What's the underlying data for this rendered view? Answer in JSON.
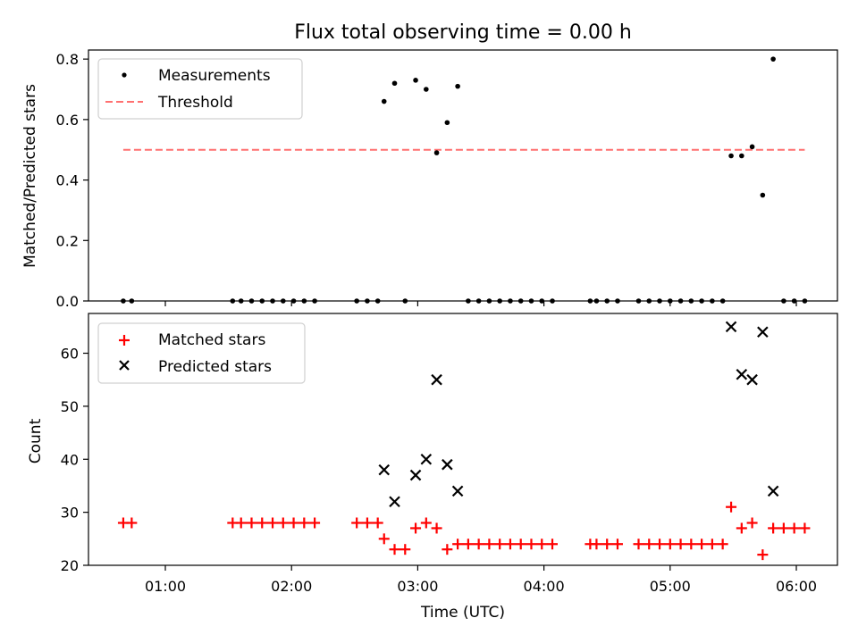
{
  "chart_data": [
    {
      "type": "scatter",
      "title": "Flux total observing time = 0.00 h",
      "xlabel": "",
      "ylabel": "Matched/Predicted stars",
      "ylim": [
        0,
        0.83
      ],
      "yticks": [
        "0.0",
        "0.2",
        "0.4",
        "0.6",
        "0.8"
      ],
      "ytick_values": [
        0,
        0.2,
        0.4,
        0.6,
        0.8
      ],
      "legend_position": "upper-left",
      "series": [
        {
          "name": "Measurements",
          "marker": "dot",
          "color": "#000000",
          "points": [
            [
              "00:40",
              0
            ],
            [
              "00:44",
              0
            ],
            [
              "01:32",
              0
            ],
            [
              "01:36",
              0
            ],
            [
              "01:41",
              0
            ],
            [
              "01:46",
              0
            ],
            [
              "01:51",
              0
            ],
            [
              "01:56",
              0
            ],
            [
              "02:01",
              0
            ],
            [
              "02:06",
              0
            ],
            [
              "02:11",
              0
            ],
            [
              "02:31",
              0
            ],
            [
              "02:36",
              0
            ],
            [
              "02:41",
              0
            ],
            [
              "02:44",
              0.66
            ],
            [
              "02:49",
              0.72
            ],
            [
              "02:54",
              0
            ],
            [
              "02:59",
              0.73
            ],
            [
              "03:04",
              0.7
            ],
            [
              "03:09",
              0.49
            ],
            [
              "03:14",
              0.59
            ],
            [
              "03:19",
              0.71
            ],
            [
              "03:24",
              0
            ],
            [
              "03:29",
              0
            ],
            [
              "03:34",
              0
            ],
            [
              "03:39",
              0
            ],
            [
              "03:44",
              0
            ],
            [
              "03:49",
              0
            ],
            [
              "03:54",
              0
            ],
            [
              "03:59",
              0
            ],
            [
              "04:04",
              0
            ],
            [
              "04:22",
              0
            ],
            [
              "04:25",
              0
            ],
            [
              "04:30",
              0
            ],
            [
              "04:35",
              0
            ],
            [
              "04:45",
              0
            ],
            [
              "04:50",
              0
            ],
            [
              "04:55",
              0
            ],
            [
              "05:00",
              0
            ],
            [
              "05:05",
              0
            ],
            [
              "05:10",
              0
            ],
            [
              "05:15",
              0
            ],
            [
              "05:20",
              0
            ],
            [
              "05:25",
              0
            ],
            [
              "05:29",
              0.48
            ],
            [
              "05:34",
              0.48
            ],
            [
              "05:39",
              0.51
            ],
            [
              "05:44",
              0.35
            ],
            [
              "05:49",
              0.8
            ],
            [
              "05:54",
              0
            ],
            [
              "05:59",
              0
            ],
            [
              "06:04",
              0
            ]
          ]
        },
        {
          "name": "Threshold",
          "marker": "dashed-line",
          "color": "#ff7070",
          "x": [
            "00:40",
            "06:04"
          ],
          "y": [
            0.5,
            0.5
          ]
        }
      ]
    },
    {
      "type": "scatter",
      "title": "",
      "xlabel": "Time (UTC)",
      "ylabel": "Count",
      "ylim": [
        20,
        67.5
      ],
      "yticks": [
        "20",
        "30",
        "40",
        "50",
        "60"
      ],
      "ytick_values": [
        20,
        30,
        40,
        50,
        60
      ],
      "xticks": [
        "01:00",
        "02:00",
        "03:00",
        "04:00",
        "05:00",
        "06:00"
      ],
      "legend_position": "upper-left",
      "series": [
        {
          "name": "Matched stars",
          "marker": "plus",
          "color": "#ff0000",
          "points": [
            [
              "00:40",
              28
            ],
            [
              "00:44",
              28
            ],
            [
              "01:32",
              28
            ],
            [
              "01:36",
              28
            ],
            [
              "01:41",
              28
            ],
            [
              "01:46",
              28
            ],
            [
              "01:51",
              28
            ],
            [
              "01:56",
              28
            ],
            [
              "02:01",
              28
            ],
            [
              "02:06",
              28
            ],
            [
              "02:11",
              28
            ],
            [
              "02:31",
              28
            ],
            [
              "02:36",
              28
            ],
            [
              "02:41",
              28
            ],
            [
              "02:44",
              25
            ],
            [
              "02:49",
              23
            ],
            [
              "02:54",
              23
            ],
            [
              "02:59",
              27
            ],
            [
              "03:04",
              28
            ],
            [
              "03:09",
              27
            ],
            [
              "03:14",
              23
            ],
            [
              "03:19",
              24
            ],
            [
              "03:24",
              24
            ],
            [
              "03:29",
              24
            ],
            [
              "03:34",
              24
            ],
            [
              "03:39",
              24
            ],
            [
              "03:44",
              24
            ],
            [
              "03:49",
              24
            ],
            [
              "03:54",
              24
            ],
            [
              "03:59",
              24
            ],
            [
              "04:04",
              24
            ],
            [
              "04:22",
              24
            ],
            [
              "04:25",
              24
            ],
            [
              "04:30",
              24
            ],
            [
              "04:35",
              24
            ],
            [
              "04:45",
              24
            ],
            [
              "04:50",
              24
            ],
            [
              "04:55",
              24
            ],
            [
              "05:00",
              24
            ],
            [
              "05:05",
              24
            ],
            [
              "05:10",
              24
            ],
            [
              "05:15",
              24
            ],
            [
              "05:20",
              24
            ],
            [
              "05:25",
              24
            ],
            [
              "05:29",
              31
            ],
            [
              "05:34",
              27
            ],
            [
              "05:39",
              28
            ],
            [
              "05:44",
              22
            ],
            [
              "05:49",
              27
            ],
            [
              "05:54",
              27
            ],
            [
              "05:59",
              27
            ],
            [
              "06:04",
              27
            ]
          ]
        },
        {
          "name": "Predicted stars",
          "marker": "x",
          "color": "#000000",
          "points": [
            [
              "02:44",
              38
            ],
            [
              "02:49",
              32
            ],
            [
              "02:59",
              37
            ],
            [
              "03:04",
              40
            ],
            [
              "03:09",
              55
            ],
            [
              "03:14",
              39
            ],
            [
              "03:19",
              34
            ],
            [
              "05:29",
              65
            ],
            [
              "05:34",
              56
            ],
            [
              "05:39",
              55
            ],
            [
              "05:44",
              64
            ],
            [
              "05:49",
              34
            ]
          ]
        }
      ]
    }
  ]
}
